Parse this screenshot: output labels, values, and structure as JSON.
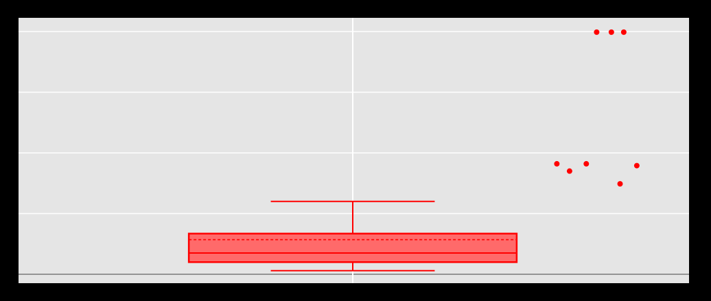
{
  "chart_data": {
    "type": "box",
    "title": "",
    "xlabel": "",
    "ylabel": "",
    "ylim": [
      -0.2,
      4.2
    ],
    "grid": true,
    "y_gridlines": [
      0,
      1,
      2,
      3,
      4
    ],
    "x_gridlines": [
      0
    ],
    "x_range": [
      -1.0,
      1.0
    ],
    "box": {
      "q1": 0.2,
      "median": 0.35,
      "q3": 0.67,
      "mean": 0.57,
      "whisker_low": 0.06,
      "whisker_high": 1.2,
      "x_center": 0,
      "half_width": 0.49,
      "cap_half_width": 0.245
    },
    "outliers": [
      {
        "x": 0.61,
        "y": 1.82
      },
      {
        "x": 0.648,
        "y": 1.7
      },
      {
        "x": 0.698,
        "y": 1.82
      },
      {
        "x": 0.799,
        "y": 1.49
      },
      {
        "x": 0.849,
        "y": 1.79
      },
      {
        "x": 0.729,
        "y": 3.99
      },
      {
        "x": 0.773,
        "y": 3.99
      },
      {
        "x": 0.81,
        "y": 3.99
      }
    ]
  },
  "style": {
    "background": "#000000",
    "panel": "#e5e5e5",
    "grid": "#ffffff",
    "accent": "#ff0000",
    "box_fill": "#ff6a6a"
  }
}
